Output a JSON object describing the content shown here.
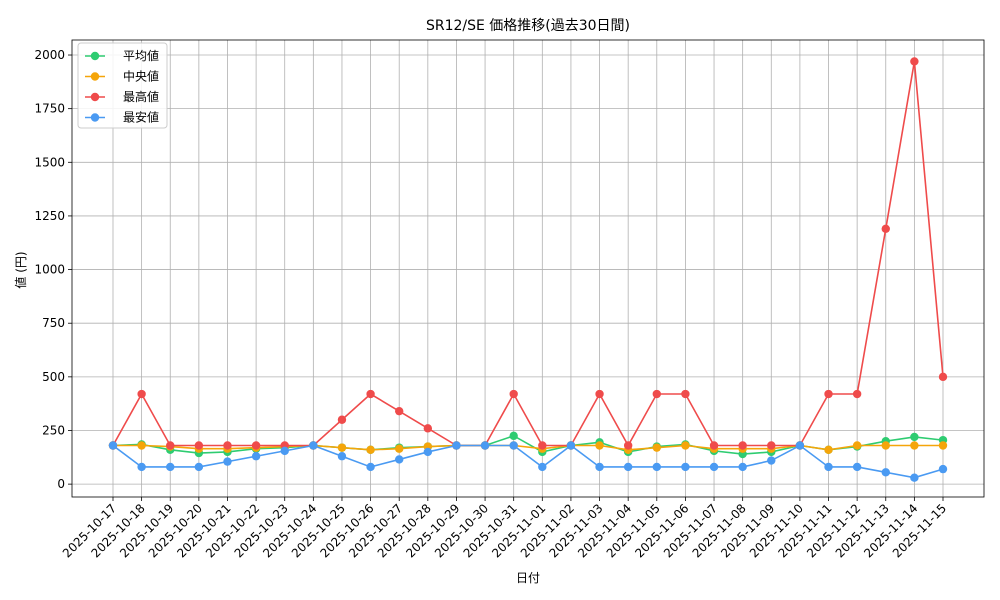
{
  "chart_data": {
    "type": "line",
    "title": "SR12/SE 価格推移(過去30日間)",
    "xlabel": "日付",
    "ylabel": "値 (円)",
    "ylim": [
      -60,
      2070
    ],
    "yticks": [
      0,
      250,
      500,
      750,
      1000,
      1250,
      1500,
      1750,
      2000
    ],
    "ytick_labels": [
      "0",
      "250",
      "500",
      "750",
      "1000",
      "1250",
      "1500",
      "1750",
      "2000"
    ],
    "grid": true,
    "legend_position": "top-left",
    "categories": [
      "2025-10-17",
      "2025-10-18",
      "2025-10-19",
      "2025-10-20",
      "2025-10-21",
      "2025-10-22",
      "2025-10-23",
      "2025-10-24",
      "2025-10-25",
      "2025-10-26",
      "2025-10-27",
      "2025-10-28",
      "2025-10-29",
      "2025-10-30",
      "2025-10-31",
      "2025-11-01",
      "2025-11-02",
      "2025-11-03",
      "2025-11-04",
      "2025-11-05",
      "2025-11-06",
      "2025-11-07",
      "2025-11-08",
      "2025-11-09",
      "2025-11-10",
      "2025-11-11",
      "2025-11-12",
      "2025-11-13",
      "2025-11-14",
      "2025-11-15"
    ],
    "series": [
      {
        "name": "平均値",
        "color": "#2ecc71",
        "values": [
          180,
          185,
          160,
          145,
          150,
          165,
          170,
          180,
          170,
          160,
          170,
          175,
          180,
          180,
          225,
          150,
          180,
          195,
          150,
          175,
          185,
          155,
          140,
          150,
          180,
          160,
          175,
          200,
          220,
          205
        ]
      },
      {
        "name": "中央値",
        "color": "#f5a50a",
        "values": [
          180,
          180,
          175,
          165,
          165,
          170,
          175,
          180,
          170,
          160,
          165,
          175,
          180,
          180,
          180,
          165,
          180,
          180,
          160,
          170,
          180,
          165,
          165,
          165,
          180,
          160,
          180,
          180,
          180,
          180
        ]
      },
      {
        "name": "最高値",
        "color": "#ef4b4b",
        "values": [
          180,
          420,
          180,
          180,
          180,
          180,
          180,
          180,
          300,
          420,
          340,
          260,
          180,
          180,
          420,
          180,
          180,
          420,
          180,
          420,
          420,
          180,
          180,
          180,
          180,
          420,
          420,
          1190,
          1970,
          500
        ]
      },
      {
        "name": "最安値",
        "color": "#4a9af2",
        "values": [
          180,
          80,
          80,
          80,
          105,
          130,
          155,
          180,
          130,
          80,
          115,
          150,
          180,
          180,
          180,
          80,
          180,
          80,
          80,
          80,
          80,
          80,
          80,
          110,
          180,
          80,
          80,
          55,
          30,
          70
        ]
      }
    ]
  }
}
